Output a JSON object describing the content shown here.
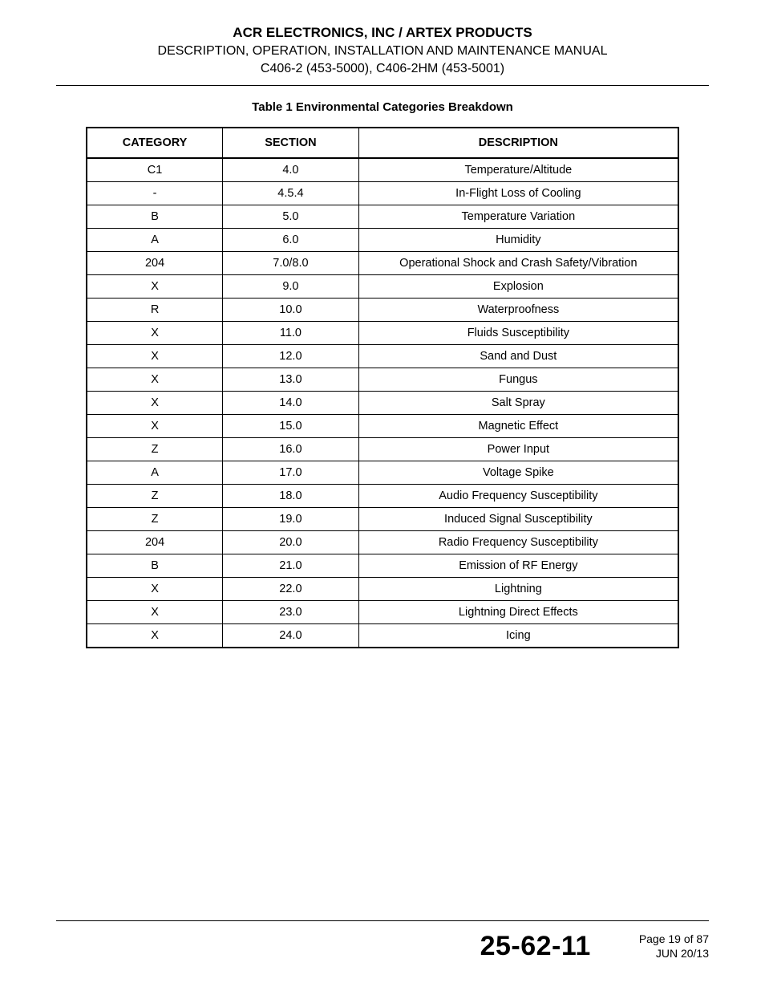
{
  "header": {
    "company": "ACR ELECTRONICS, INC / ARTEX PRODUCTS",
    "manualTitle": "DESCRIPTION, OPERATION, INSTALLATION AND MAINTENANCE MANUAL",
    "models": "C406-2 (453-5000), C406-2HM (453-5001)"
  },
  "table": {
    "title": "Table 1  Environmental Categories Breakdown",
    "columns": [
      "CATEGORY",
      "SECTION",
      "DESCRIPTION"
    ],
    "rows": [
      [
        "C1",
        "4.0",
        "Temperature/Altitude"
      ],
      [
        "-",
        "4.5.4",
        "In-Flight Loss of Cooling"
      ],
      [
        "B",
        "5.0",
        "Temperature Variation"
      ],
      [
        "A",
        "6.0",
        "Humidity"
      ],
      [
        "204",
        "7.0/8.0",
        "Operational Shock and Crash Safety/Vibration"
      ],
      [
        "X",
        "9.0",
        "Explosion"
      ],
      [
        "R",
        "10.0",
        "Waterproofness"
      ],
      [
        "X",
        "11.0",
        "Fluids Susceptibility"
      ],
      [
        "X",
        "12.0",
        "Sand and Dust"
      ],
      [
        "X",
        "13.0",
        "Fungus"
      ],
      [
        "X",
        "14.0",
        "Salt Spray"
      ],
      [
        "X",
        "15.0",
        "Magnetic Effect"
      ],
      [
        "Z",
        "16.0",
        "Power Input"
      ],
      [
        "A",
        "17.0",
        "Voltage Spike"
      ],
      [
        "Z",
        "18.0",
        "Audio Frequency Susceptibility"
      ],
      [
        "Z",
        "19.0",
        "Induced Signal Susceptibility"
      ],
      [
        "204",
        "20.0",
        "Radio Frequency Susceptibility"
      ],
      [
        "B",
        "21.0",
        "Emission of RF Energy"
      ],
      [
        "X",
        "22.0",
        "Lightning"
      ],
      [
        "X",
        "23.0",
        "Lightning Direct Effects"
      ],
      [
        "X",
        "24.0",
        "Icing"
      ]
    ]
  },
  "footer": {
    "docNumber": "25-62-11",
    "pageLabel": "Page 19 of 87",
    "date": "JUN 20/13"
  },
  "styles": {
    "pageBackground": "#ffffff",
    "textColor": "#000000",
    "ruleColor": "#000000",
    "tableBorderColor": "#000000",
    "columnWidthsPx": [
      170,
      170,
      400
    ],
    "headerFontSizePt": 12,
    "bodyFontSizePt": 11,
    "docNumberFontSizePt": 26
  }
}
